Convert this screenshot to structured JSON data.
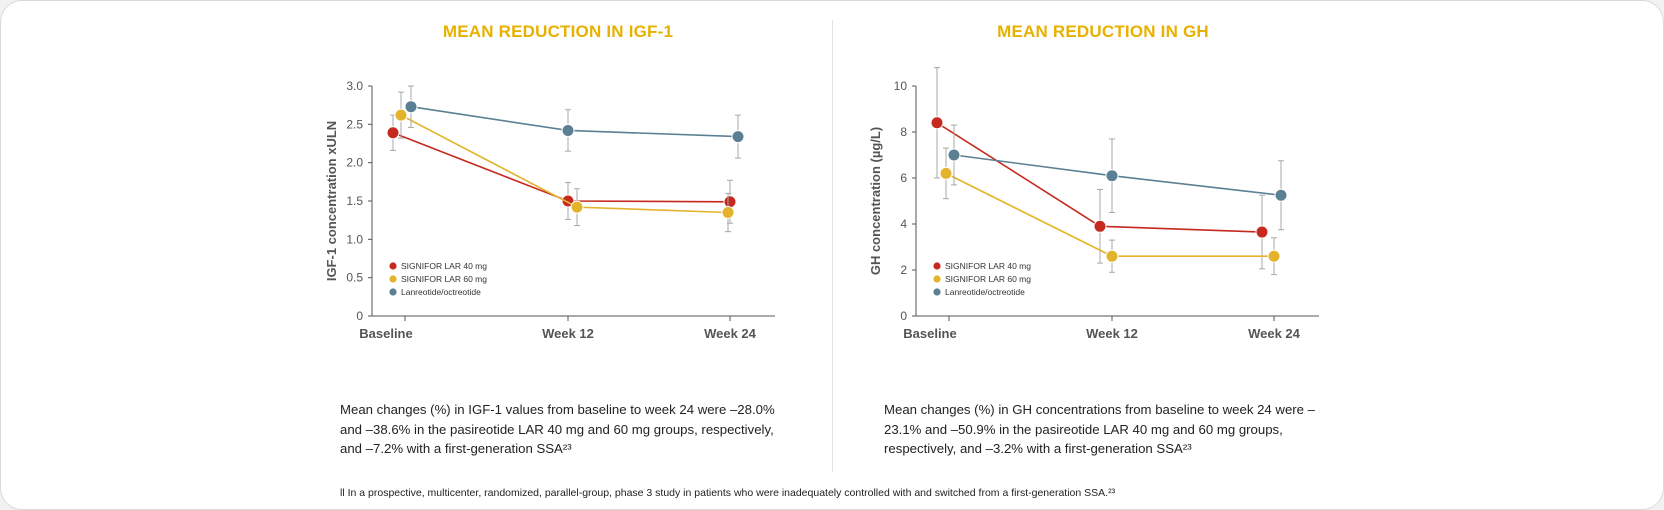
{
  "footnote": "ll In a prospective, multicenter, randomized, parallel-group, phase 3 study in patients who were inadequately controlled with and switched from a first-generation SSA.²³",
  "colors": {
    "title": "#e8b100",
    "signifor40": "#c62a1e",
    "signifor60": "#e3b32c",
    "lanreotide": "#5b7f93",
    "errorbar": "#a8a8a8",
    "axis": "#555555"
  },
  "chart_data": [
    {
      "type": "line",
      "title": "MEAN REDUCTION IN IGF-1",
      "xlabel": "",
      "ylabel": "IGF-1 concentration xULN",
      "categories": [
        "Baseline",
        "Week 12",
        "Week 24"
      ],
      "ylim": [
        0,
        3.0
      ],
      "yticks": [
        "0",
        "0.5",
        "1.0",
        "1.5",
        "2.0",
        "2.5",
        "3.0"
      ],
      "grid": false,
      "legend_position": "bottom-left",
      "series": [
        {
          "name": "SIGNIFOR LAR 40 mg",
          "color": "#c62a1e",
          "values": [
            2.39,
            1.5,
            1.49
          ],
          "err": [
            0.23,
            0.24,
            0.28
          ]
        },
        {
          "name": "SIGNIFOR LAR 60 mg",
          "color": "#e3b32c",
          "values": [
            2.62,
            1.42,
            1.35
          ],
          "err": [
            0.3,
            0.24,
            0.25
          ]
        },
        {
          "name": "Lanreotide/octreotide",
          "color": "#5b7f93",
          "values": [
            2.73,
            2.42,
            2.34
          ],
          "err": [
            0.27,
            0.27,
            0.28
          ]
        }
      ],
      "caption": "Mean changes (%) in IGF-1 values from baseline to week 24 were –28.0% and –38.6% in the pasireotide LAR 40 mg and 60 mg groups, respectively, and –7.2% with a first-generation SSA²³"
    },
    {
      "type": "line",
      "title": "MEAN REDUCTION IN GH",
      "xlabel": "",
      "ylabel": "GH concentration (µg/L)",
      "categories": [
        "Baseline",
        "Week 12",
        "Week 24"
      ],
      "ylim": [
        0,
        10
      ],
      "yticks": [
        "0",
        "2",
        "4",
        "6",
        "8",
        "10"
      ],
      "grid": false,
      "legend_position": "bottom-left",
      "series": [
        {
          "name": "SIGNIFOR LAR 40 mg",
          "color": "#c62a1e",
          "values": [
            8.4,
            3.9,
            3.65
          ],
          "err": [
            2.4,
            1.6,
            1.6
          ]
        },
        {
          "name": "SIGNIFOR LAR 60 mg",
          "color": "#e3b32c",
          "values": [
            6.2,
            2.6,
            2.6
          ],
          "err": [
            1.1,
            0.7,
            0.8
          ]
        },
        {
          "name": "Lanreotide/octreotide",
          "color": "#5b7f93",
          "values": [
            7.0,
            6.1,
            5.25
          ],
          "err": [
            1.3,
            1.6,
            1.5
          ]
        }
      ],
      "caption": "Mean changes (%) in GH concentrations from baseline to week 24 were –23.1% and –50.9% in the pasireotide LAR 40 mg and 60 mg groups, respectively, and –3.2% with a first-generation SSA²³"
    }
  ]
}
